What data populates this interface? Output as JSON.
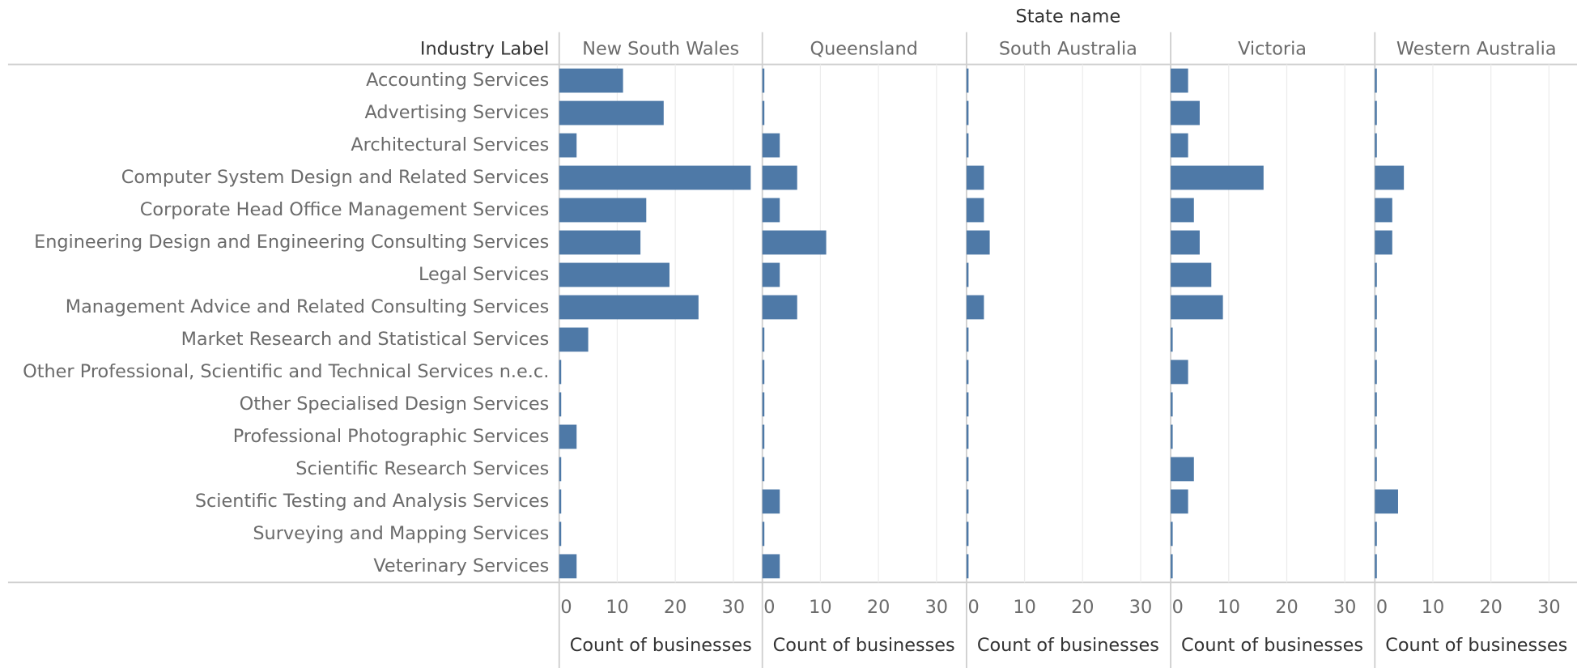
{
  "chart_data": {
    "type": "bar",
    "orientation": "horizontal",
    "column_header": "State name",
    "row_header": "Industry Label",
    "xlabel": "Count of businesses",
    "color": "#4e79a7",
    "xlim": [
      0,
      35
    ],
    "xticks": [
      0,
      10,
      20,
      30
    ],
    "grid": true,
    "categories": [
      "Accounting Services",
      "Advertising Services",
      "Architectural Services",
      "Computer System Design and Related Services",
      "Corporate Head Office Management Services",
      "Engineering Design and Engineering Consulting Services",
      "Legal Services",
      "Management Advice and Related Consulting Services",
      "Market Research and Statistical Services",
      "Other Professional, Scientific and Technical Services n.e.c.",
      "Other Specialised Design Services",
      "Professional Photographic Services",
      "Scientific Research Services",
      "Scientific Testing and Analysis Services",
      "Surveying and Mapping Services",
      "Veterinary Services"
    ],
    "series": [
      {
        "name": "New South Wales",
        "values": [
          11,
          18,
          3,
          33,
          15,
          14,
          19,
          24,
          5,
          0,
          0,
          3,
          0,
          0,
          0,
          3
        ]
      },
      {
        "name": "Queensland",
        "values": [
          0,
          0,
          3,
          6,
          3,
          11,
          3,
          6,
          0,
          0,
          0,
          0,
          0,
          3,
          0,
          3
        ]
      },
      {
        "name": "South Australia",
        "values": [
          0,
          0,
          0,
          3,
          3,
          4,
          0,
          3,
          0,
          0,
          0,
          0,
          0,
          0,
          0,
          0
        ]
      },
      {
        "name": "Victoria",
        "values": [
          3,
          5,
          3,
          16,
          4,
          5,
          7,
          9,
          0,
          3,
          0,
          0,
          4,
          3,
          0,
          0
        ]
      },
      {
        "name": "Western Australia",
        "values": [
          0,
          0,
          0,
          5,
          3,
          3,
          0,
          0,
          0,
          0,
          0,
          0,
          0,
          4,
          0,
          0
        ]
      }
    ]
  }
}
